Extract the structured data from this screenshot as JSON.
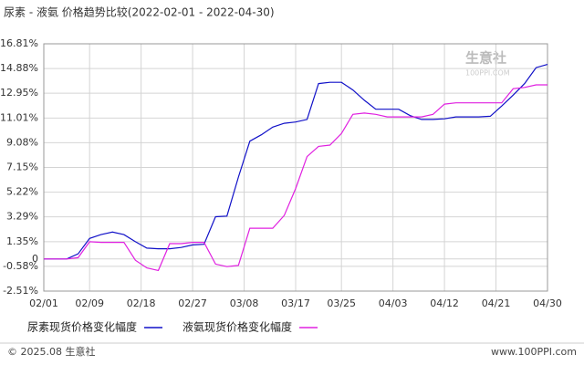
{
  "chart_data": {
    "type": "line",
    "title": "尿素 - 液氨 价格趋势比较(2022-02-01 - 2022-04-30)",
    "watermark": "生意社",
    "watermark_sub": "100PPI.COM",
    "footer_left": "© 2025.08 生意社",
    "footer_right": "www.100PPI.com",
    "x": [
      "02/01",
      "02/05",
      "02/07",
      "02/09",
      "02/11",
      "02/13",
      "02/15",
      "02/17",
      "02/19",
      "02/21",
      "02/23",
      "02/25",
      "02/27",
      "03/01",
      "03/03",
      "03/05",
      "03/07",
      "03/09",
      "03/11",
      "03/13",
      "03/15",
      "03/17",
      "03/19",
      "03/21",
      "03/23",
      "03/25",
      "03/27",
      "03/29",
      "03/31",
      "04/02",
      "04/04",
      "04/06",
      "04/08",
      "04/10",
      "04/12",
      "04/14",
      "04/16",
      "04/18",
      "04/20",
      "04/22",
      "04/24",
      "04/26",
      "04/28",
      "04/30"
    ],
    "series": [
      {
        "name": "尿素现货价格变化幅度",
        "color": "#1010c8",
        "values": [
          0,
          0,
          0.4,
          1.6,
          1.9,
          2.1,
          1.9,
          1.35,
          0.85,
          0.8,
          0.8,
          0.9,
          1.1,
          1.15,
          3.3,
          3.35,
          6.4,
          9.2,
          9.7,
          10.3,
          10.6,
          10.7,
          10.9,
          13.7,
          13.8,
          13.8,
          13.2,
          12.4,
          11.7,
          11.7,
          11.7,
          11.2,
          10.9,
          10.9,
          10.95,
          11.1,
          11.1,
          11.1,
          11.15,
          11.95,
          12.8,
          13.7,
          14.95,
          15.2
        ]
      },
      {
        "name": "液氨现货价格变化幅度",
        "color": "#e020e0",
        "values": [
          0,
          0,
          0.1,
          1.35,
          1.3,
          1.3,
          1.3,
          -0.1,
          -0.7,
          -0.9,
          1.2,
          1.2,
          1.3,
          1.3,
          -0.4,
          -0.6,
          -0.5,
          2.4,
          2.4,
          2.4,
          3.4,
          5.5,
          8.0,
          8.8,
          8.9,
          9.8,
          11.3,
          11.4,
          11.3,
          11.1,
          11.1,
          11.1,
          11.1,
          11.3,
          12.1,
          12.2,
          12.2,
          12.2,
          12.2,
          12.2,
          13.3,
          13.4,
          13.6,
          13.6
        ]
      }
    ],
    "xlim": [
      "02/01",
      "04/30"
    ],
    "xticks": [
      "02/01",
      "02/09",
      "02/18",
      "02/27",
      "03/08",
      "03/17",
      "03/25",
      "04/03",
      "04/12",
      "04/21",
      "04/30"
    ],
    "ylim": [
      -2.51,
      16.81
    ],
    "yticks": [
      {
        "value": 16.81,
        "label": "16.81%"
      },
      {
        "value": 14.88,
        "label": "14.88%"
      },
      {
        "value": 12.95,
        "label": "12.95%"
      },
      {
        "value": 11.01,
        "label": "11.01%"
      },
      {
        "value": 9.08,
        "label": "9.08%"
      },
      {
        "value": 7.15,
        "label": "7.15%"
      },
      {
        "value": 5.22,
        "label": "5.22%"
      },
      {
        "value": 3.29,
        "label": "3.29%"
      },
      {
        "value": 1.35,
        "label": "1.35%"
      },
      0,
      {
        "value": -0.58,
        "label": "-0.58%"
      },
      {
        "value": -2.51,
        "label": "-2.51%"
      }
    ],
    "grid": true
  }
}
